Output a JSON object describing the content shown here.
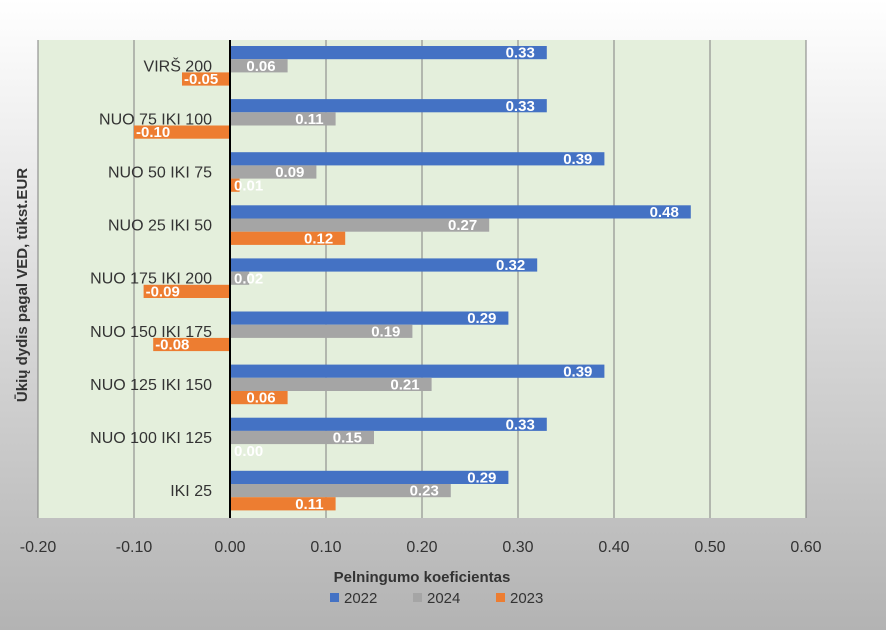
{
  "chart_data": {
    "type": "bar",
    "orientation": "horizontal",
    "title": "",
    "xlabel": "Pelningumo koeficientas",
    "ylabel": "Ūkių dydis pagal VED,  tūkst.EUR",
    "xlim": [
      -0.2,
      0.6
    ],
    "xticks": [
      "-0.20",
      "-0.10",
      "0.00",
      "0.10",
      "0.20",
      "0.30",
      "0.40",
      "0.50",
      "0.60"
    ],
    "grid": "vertical",
    "legend_position": "bottom",
    "categories": [
      "VIRŠ 200",
      "NUO 75 IKI 100",
      "NUO 50 IKI 75",
      "NUO 25 IKI 50",
      "NUO 175 IKI 200",
      "NUO 150 IKI 175",
      "NUO 125 IKI 150",
      "NUO 100 IKI 125",
      "IKI 25"
    ],
    "series": [
      {
        "name": "2022",
        "color": "#4472c4",
        "values": [
          0.33,
          0.33,
          0.39,
          0.48,
          0.32,
          0.29,
          0.39,
          0.33,
          0.29
        ],
        "labels": [
          "0.33",
          "0.33",
          "0.39",
          "0.48",
          "0.32",
          "0.29",
          "0.39",
          "0.33",
          "0.29"
        ]
      },
      {
        "name": "2024",
        "color": "#a5a5a5",
        "values": [
          0.06,
          0.11,
          0.09,
          0.27,
          0.02,
          0.19,
          0.21,
          0.15,
          0.23
        ],
        "labels": [
          "0.06",
          "0.11",
          "0.09",
          "0.27",
          "0.02",
          "0.19",
          "0.21",
          "0.15",
          "0.23"
        ]
      },
      {
        "name": "2023",
        "color": "#ed7d31",
        "values": [
          -0.05,
          -0.1,
          0.01,
          0.12,
          -0.09,
          -0.08,
          0.06,
          0.0,
          0.11
        ],
        "labels": [
          "-0.05",
          "-0.10",
          "0.01",
          "0.12",
          "-0.09",
          "-0.08",
          "0.06",
          "0.00",
          "0.11"
        ]
      }
    ]
  },
  "colors": {
    "plot_background": "#e4efdc",
    "outer_background_top": "#ffffff",
    "outer_background_bottom": "#b3b3b3",
    "gridline": "#7f7f7f",
    "zero_axis": "#000000"
  }
}
